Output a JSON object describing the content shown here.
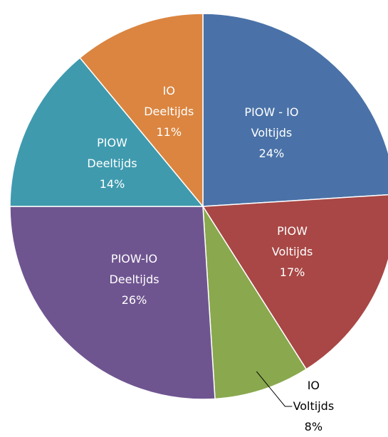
{
  "chart_data": {
    "type": "pie",
    "categories": [
      "PIOW - IO\nVoltijds",
      "PIOW\nVoltijds",
      "IO\nVoltijds",
      "PIOW-IO\nDeeltijds",
      "PIOW\nDeeltijds",
      "IO\nDeeltijds"
    ],
    "values": [
      24,
      17,
      8,
      26,
      14,
      11
    ],
    "value_labels": [
      "24%",
      "17%",
      "8%",
      "26%",
      "14%",
      "11%"
    ],
    "colors": [
      "#4a72a8",
      "#a84745",
      "#8aa84e",
      "#6f5590",
      "#3f9aae",
      "#db8540"
    ]
  }
}
